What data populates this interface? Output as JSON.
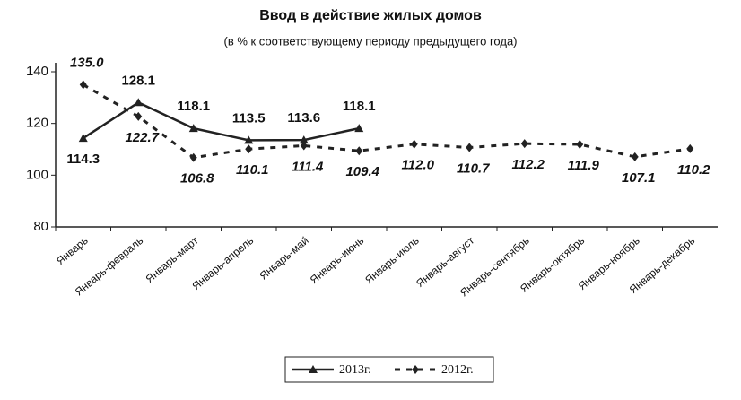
{
  "chart_data": {
    "type": "line",
    "title": "Ввод в действие жилых домов",
    "subtitle": "(в % к соответствующему периоду предыдущего года)",
    "categories": [
      "Январь",
      "Январь-февраль",
      "Январь-март",
      "Январь-апрель",
      "Январь-май",
      "Январь-июнь",
      "Январь-июль",
      "Январь-август",
      "Январь-сентябрь",
      "Январь-октябрь",
      "Январь-ноябрь",
      "Январь-декабрь"
    ],
    "series": [
      {
        "name": "2013г.",
        "color": "#222222",
        "values": [
          114.3,
          128.1,
          118.1,
          113.5,
          113.6,
          118.1,
          null,
          null,
          null,
          null,
          null,
          null
        ]
      },
      {
        "name": "2012г.",
        "color": "#222222",
        "values": [
          135,
          122.7,
          106.8,
          110.1,
          111.4,
          109.4,
          112,
          110.7,
          112.2,
          111.9,
          107.1,
          110.2
        ],
        "value_labels": [
          "135.0",
          "122.7",
          "106.8",
          "110.1",
          "111.4",
          "109.4",
          "112.0",
          "110.7",
          "112.2",
          "111.9",
          "107.1",
          "110.2"
        ]
      }
    ],
    "ylim": [
      80,
      140
    ],
    "yticks": [
      80,
      100,
      120,
      140
    ],
    "legend": "bottom"
  }
}
